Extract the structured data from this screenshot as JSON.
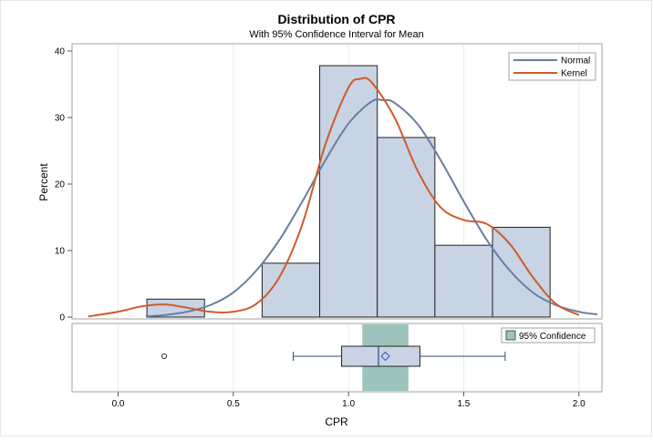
{
  "chart_data": {
    "type": "bar",
    "title": "Distribution of CPR",
    "subtitle": "With 95% Confidence Interval for Mean",
    "xlabel": "CPR",
    "ylabel": "Percent",
    "xlim": [
      -0.2,
      2.1
    ],
    "ylim": [
      0,
      40
    ],
    "x_ticks": [
      "0.0",
      "0.5",
      "1.0",
      "1.5",
      "2.0"
    ],
    "x_tick_values": [
      0.0,
      0.5,
      1.0,
      1.5,
      2.0
    ],
    "y_ticks": [
      "0",
      "10",
      "20",
      "30",
      "40"
    ],
    "y_tick_values": [
      0,
      10,
      20,
      30,
      40
    ],
    "grid": true,
    "bins": [
      {
        "start": 0.125,
        "end": 0.375,
        "percent": 2.7
      },
      {
        "start": 0.625,
        "end": 0.875,
        "percent": 8.1
      },
      {
        "start": 0.875,
        "end": 1.125,
        "percent": 37.8
      },
      {
        "start": 1.125,
        "end": 1.375,
        "percent": 27.0
      },
      {
        "start": 1.375,
        "end": 1.625,
        "percent": 10.8
      },
      {
        "start": 1.625,
        "end": 1.875,
        "percent": 13.5
      }
    ],
    "series": [
      {
        "name": "Normal",
        "color": "#667f9f",
        "x": [
          0.12,
          0.2,
          0.3,
          0.4,
          0.5,
          0.6,
          0.7,
          0.8,
          0.9,
          1.0,
          1.1,
          1.15,
          1.2,
          1.3,
          1.4,
          1.5,
          1.6,
          1.7,
          1.8,
          1.9,
          2.0,
          2.08
        ],
        "y": [
          0.1,
          0.3,
          0.8,
          1.8,
          3.7,
          7.0,
          11.6,
          17.4,
          23.6,
          29.1,
          32.4,
          32.6,
          32.2,
          29.0,
          23.6,
          17.4,
          11.6,
          7.0,
          3.7,
          1.8,
          0.8,
          0.4
        ]
      },
      {
        "name": "Kernel",
        "color": "#d05b2a",
        "x": [
          -0.13,
          0.0,
          0.1,
          0.2,
          0.3,
          0.4,
          0.5,
          0.6,
          0.7,
          0.8,
          0.9,
          1.0,
          1.05,
          1.1,
          1.2,
          1.3,
          1.4,
          1.5,
          1.6,
          1.7,
          1.8,
          1.9,
          2.0
        ],
        "y": [
          0.1,
          0.8,
          1.6,
          1.9,
          1.4,
          0.8,
          0.8,
          2.0,
          6.0,
          14.0,
          26.0,
          34.5,
          35.8,
          35.3,
          30.0,
          22.0,
          16.5,
          14.6,
          14.0,
          11.0,
          6.0,
          2.0,
          0.3
        ]
      }
    ],
    "legend": {
      "placement": "top-right",
      "entries": [
        "Normal",
        "Kernel"
      ]
    },
    "boxplot": {
      "whisker_low": 0.76,
      "q1": 0.97,
      "median": 1.13,
      "q3": 1.31,
      "whisker_high": 1.68,
      "mean": 1.16,
      "outliers": [
        0.2
      ],
      "ci_low": 1.06,
      "ci_high": 1.26,
      "ci_label": "95% Confidence",
      "ci_color": "#9cc4bd",
      "legend_placement": "top-right"
    },
    "bar_color": "#c8d3e4"
  }
}
